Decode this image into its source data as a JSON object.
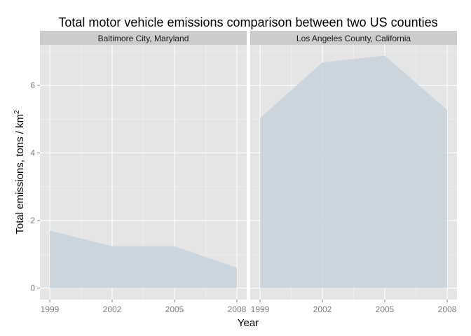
{
  "chart_data": {
    "type": "area",
    "title": "Total motor vehicle emissions comparison between two US counties",
    "xlabel": "Year",
    "ylabel": "Total emissions, tons / km",
    "ylabel_superscript": "2",
    "x": [
      1999,
      2002,
      2005,
      2008
    ],
    "x_tick_labels": [
      "1999",
      "2002",
      "2005",
      "2008"
    ],
    "y_ticks": [
      0,
      2,
      4,
      6
    ],
    "y_tick_labels": [
      "0",
      "2",
      "4",
      "6"
    ],
    "ylim": [
      -0.34,
      7.2
    ],
    "facets": [
      {
        "label": "Baltimore City, Maryland",
        "values": [
          1.7,
          1.24,
          1.24,
          0.6
        ]
      },
      {
        "label": "Los Angeles County, California",
        "values": [
          5.03,
          6.68,
          6.88,
          5.27
        ]
      }
    ],
    "colors": {
      "area": "#c5d2dc",
      "panel_background": "#e5e5e5",
      "strip_background": "#cccccc",
      "grid": "#ffffff",
      "tick_text": "#7f7f7f"
    },
    "grid": true
  }
}
